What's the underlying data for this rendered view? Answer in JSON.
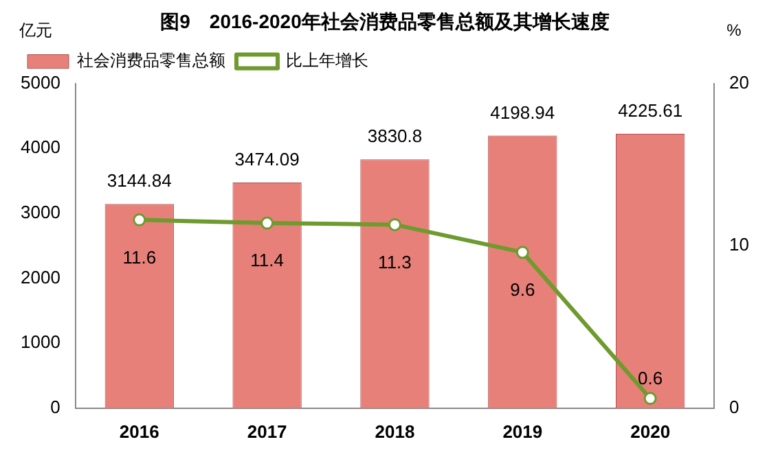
{
  "chart_data": {
    "type": "bar",
    "title": "图9　2016-2020年社会消费品零售总额及其增长速度",
    "ylabel": "亿元",
    "y2label": "%",
    "categories": [
      "2016",
      "2017",
      "2018",
      "2019",
      "2020"
    ],
    "series": [
      {
        "name": "社会消费品零售总额",
        "color": "#e8807a",
        "values": [
          3144.84,
          3474.09,
          3830.8,
          4198.94,
          4225.61
        ]
      },
      {
        "name": "比上年增长",
        "type": "line",
        "axis": "y2",
        "color": "#6e9a2e",
        "marker": "circle",
        "values": [
          11.6,
          11.4,
          11.3,
          9.6,
          0.6
        ]
      }
    ],
    "ylim": [
      0,
      5000
    ],
    "yticks": [
      0,
      1000,
      2000,
      3000,
      4000,
      5000
    ],
    "y2lim": [
      0,
      20
    ],
    "y2ticks": [
      0,
      10,
      20
    ],
    "data_labels": true,
    "legend": "top left",
    "grid": false
  }
}
